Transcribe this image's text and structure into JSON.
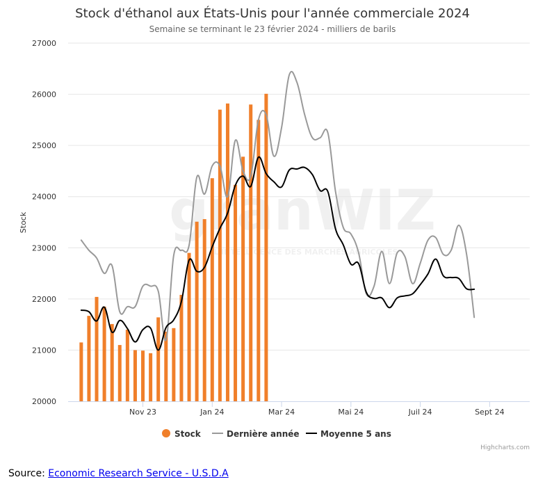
{
  "chart_data": {
    "type": "bar+line",
    "title": "Stock d'éthanol aux États-Unis pour l'année commerciale 2024",
    "subtitle": "Semaine se terminant le 23 février 2024 - milliers de barils",
    "ylabel": "Stock",
    "ylim": [
      20000,
      27000
    ],
    "yticks": [
      20000,
      21000,
      22000,
      23000,
      24000,
      25000,
      26000,
      27000
    ],
    "x_range": [
      -1.7,
      58.2
    ],
    "x_tick_labels": [
      {
        "x": 8,
        "label": "Nov 23"
      },
      {
        "x": 17,
        "label": "Jan 24"
      },
      {
        "x": 26,
        "label": "Mar 24"
      },
      {
        "x": 35,
        "label": "Mai 24"
      },
      {
        "x": 44,
        "label": "Juil 24"
      },
      {
        "x": 53,
        "label": "Sept 24"
      }
    ],
    "series": [
      {
        "name": "Stock",
        "type": "bar",
        "color": "#f07f2a",
        "values": [
          21150,
          21670,
          22040,
          21850,
          21510,
          21100,
          21400,
          21000,
          20990,
          20940,
          21640,
          21360,
          21430,
          22080,
          22900,
          23510,
          23560,
          24360,
          25700,
          25820,
          24230,
          24780,
          25800,
          25500,
          26010
        ]
      },
      {
        "name": "Dernière année",
        "type": "line",
        "color": "#999999",
        "values": [
          23150,
          22950,
          22800,
          22500,
          22650,
          21750,
          21850,
          21850,
          22250,
          22250,
          22150,
          21200,
          22850,
          22950,
          23050,
          24380,
          24050,
          24600,
          24600,
          24000,
          25100,
          24500,
          24400,
          25500,
          25600,
          24790,
          25350,
          26380,
          26230,
          25600,
          25150,
          25150,
          25250,
          24100,
          23400,
          23270,
          22900,
          22100,
          22250,
          22930,
          22300,
          22900,
          22830,
          22300,
          22700,
          23150,
          23200,
          22870,
          22950,
          23440,
          22880,
          21640
        ]
      },
      {
        "name": "Moyenne 5 ans",
        "type": "line",
        "color": "#000000",
        "values": [
          21780,
          21750,
          21570,
          21840,
          21350,
          21580,
          21420,
          21160,
          21400,
          21430,
          21000,
          21440,
          21590,
          21950,
          22760,
          22540,
          22620,
          23020,
          23380,
          23680,
          24220,
          24400,
          24200,
          24770,
          24450,
          24290,
          24190,
          24520,
          24540,
          24570,
          24430,
          24120,
          24100,
          23370,
          23060,
          22680,
          22690,
          22130,
          22010,
          22020,
          21830,
          22020,
          22060,
          22100,
          22280,
          22490,
          22780,
          22450,
          22420,
          22400,
          22200,
          22190
        ]
      }
    ],
    "legend": {
      "position": "bottom-center",
      "items": [
        "Stock",
        "Dernière année",
        "Moyenne 5 ans"
      ]
    },
    "grid": true,
    "credits": "Highcharts.com",
    "watermark": {
      "main": "granWIZ",
      "sub": "L'INTELLIGENCE DES MARCHÉS AGRICOLES"
    }
  },
  "source": {
    "prefix": "Source: ",
    "link_text": "Economic Research Service - U.S.D.A"
  }
}
